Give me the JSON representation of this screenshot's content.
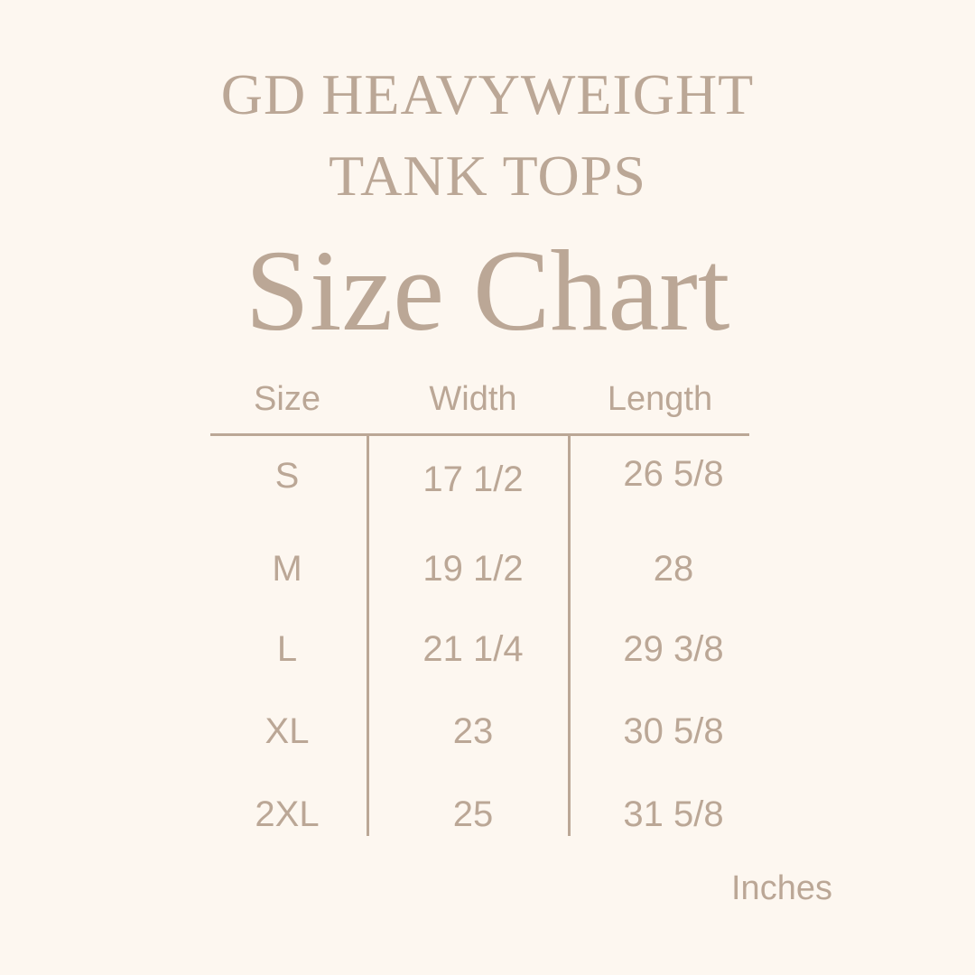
{
  "title": {
    "line1": "GD HEAVYWEIGHT",
    "line2": "TANK TOPS",
    "main": "Size Chart"
  },
  "table": {
    "headers": [
      "Size",
      "Width",
      "Length"
    ],
    "rows": [
      [
        "S",
        "17 1/2",
        "26 5/8"
      ],
      [
        "M",
        "19 1/2",
        "28"
      ],
      [
        "L",
        "21 1/4",
        "29 3/8"
      ],
      [
        "XL",
        "23",
        "30 5/8"
      ],
      [
        "2XL",
        "25",
        "31 5/8"
      ]
    ]
  },
  "unit_label": "Inches",
  "colors": {
    "background": "#fdf7f0",
    "text": "#bba796"
  }
}
